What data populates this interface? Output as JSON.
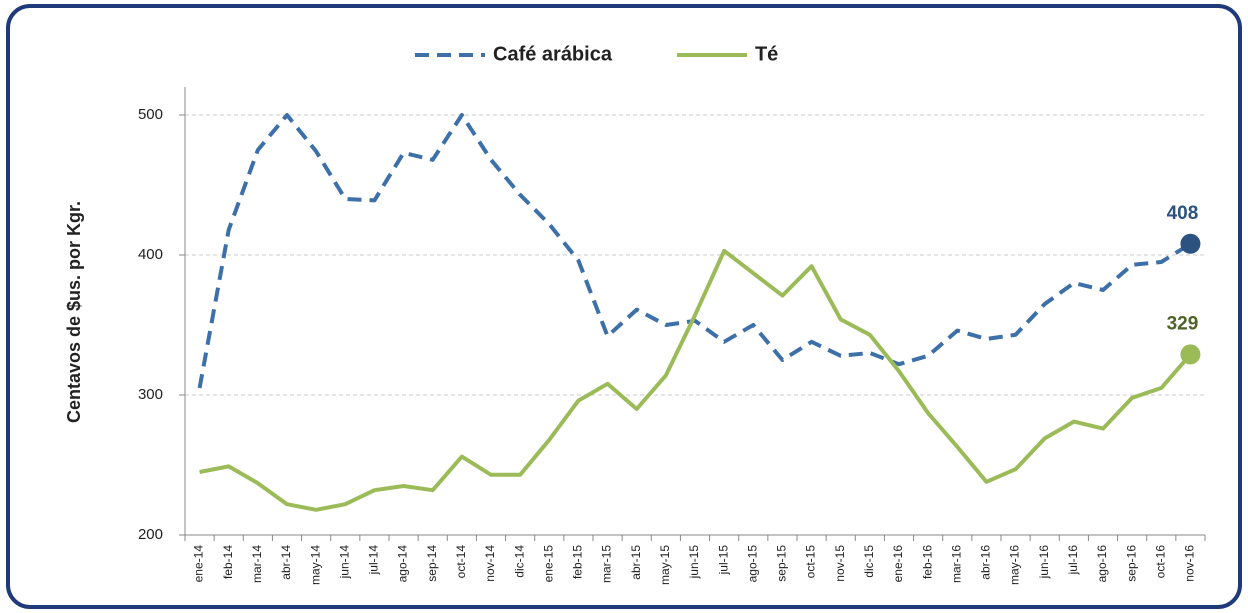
{
  "chart_data": {
    "type": "line",
    "y_label": "Centavos de $us. por Kgr.",
    "categories": [
      "ene-14",
      "feb-14",
      "mar-14",
      "abr-14",
      "may-14",
      "jun-14",
      "jul-14",
      "ago-14",
      "sep-14",
      "oct-14",
      "nov-14",
      "dic-14",
      "ene-15",
      "feb-15",
      "mar-15",
      "abr-15",
      "may-15",
      "jun-15",
      "jul-15",
      "ago-15",
      "sep-15",
      "oct-15",
      "nov-15",
      "dic-15",
      "ene-16",
      "feb-16",
      "mar-16",
      "abr-16",
      "may-16",
      "jun-16",
      "jul-16",
      "ago-16",
      "sep-16",
      "oct-16",
      "nov-16"
    ],
    "series": [
      {
        "name": "Café arábica",
        "color": "#3d6fa8",
        "dashed": true,
        "end_color": "#2b5281",
        "values": [
          305,
          418,
          475,
          500,
          474,
          440,
          439,
          473,
          468,
          500,
          468,
          443,
          422,
          396,
          342,
          361,
          350,
          353,
          338,
          350,
          325,
          338,
          328,
          330,
          322,
          328,
          346,
          340,
          343,
          365,
          380,
          375,
          393,
          395,
          408
        ]
      },
      {
        "name": "Té",
        "color": "#9bbb59",
        "dashed": false,
        "end_color": "#4f6228",
        "values": [
          245,
          249,
          237,
          222,
          218,
          222,
          232,
          235,
          232,
          256,
          243,
          243,
          268,
          296,
          308,
          290,
          314,
          357,
          403,
          387,
          371,
          392,
          354,
          343,
          317,
          287,
          263,
          238,
          247,
          269,
          281,
          276,
          298,
          305,
          329
        ]
      }
    ],
    "label_last": true,
    "ylim": [
      200,
      520
    ],
    "yticks": [
      200,
      300,
      400,
      500
    ],
    "grid": true
  }
}
